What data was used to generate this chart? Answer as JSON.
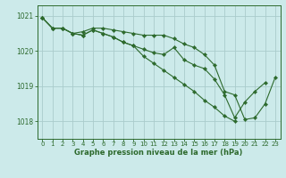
{
  "title": "Graphe pression niveau de la mer (hPa)",
  "bg_color": "#cceaea",
  "grid_color": "#aacccc",
  "line_color": "#2d6a2d",
  "xlim": [
    -0.5,
    23.5
  ],
  "ylim": [
    1017.5,
    1021.3
  ],
  "yticks": [
    1018,
    1019,
    1020,
    1021
  ],
  "xtick_labels": [
    "0",
    "1",
    "2",
    "3",
    "4",
    "5",
    "6",
    "7",
    "8",
    "9",
    "10",
    "11",
    "12",
    "13",
    "14",
    "15",
    "16",
    "17",
    "18",
    "19",
    "20",
    "21",
    "22",
    "23"
  ],
  "series1": [
    1020.95,
    1020.65,
    1020.65,
    1020.5,
    1020.55,
    1020.65,
    1020.65,
    1020.6,
    1020.55,
    1020.5,
    1020.45,
    1020.45,
    1020.45,
    1020.35,
    1020.2,
    1020.1,
    1019.9,
    1019.6,
    1018.85,
    1018.75,
    1018.05,
    1018.1,
    1018.5,
    1019.25
  ],
  "series2": [
    1020.95,
    1020.65,
    1020.65,
    1020.5,
    1020.45,
    1020.6,
    1020.5,
    1020.4,
    1020.25,
    1020.15,
    1020.05,
    1019.95,
    1019.9,
    1020.1,
    1019.75,
    1019.6,
    1019.5,
    1019.2,
    1018.75,
    1018.1,
    1018.55,
    1018.85,
    1019.1,
    null
  ],
  "series3": [
    1020.95,
    1020.65,
    1020.65,
    1020.5,
    1020.45,
    1020.6,
    1020.5,
    1020.4,
    1020.25,
    1020.15,
    1019.85,
    1019.65,
    1019.45,
    1019.25,
    1019.05,
    1018.85,
    1018.6,
    1018.4,
    1018.15,
    1018.0,
    null,
    null,
    null,
    null
  ]
}
